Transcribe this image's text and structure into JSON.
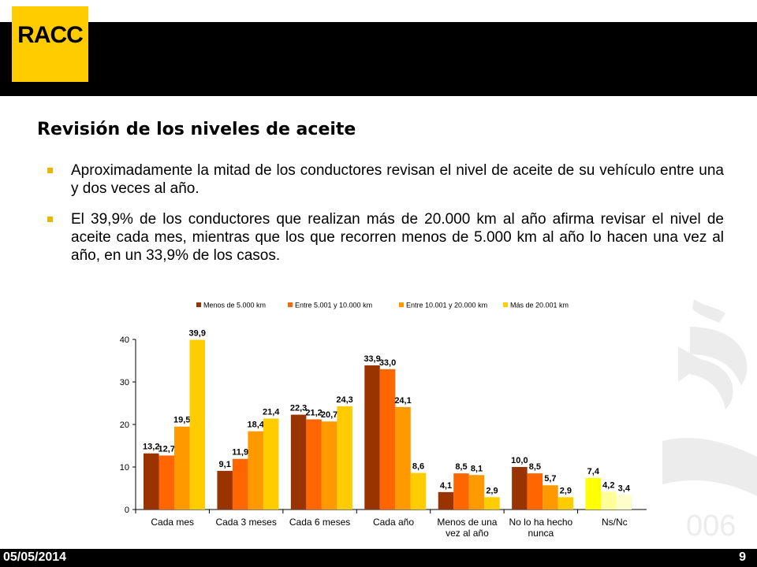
{
  "header": {
    "logo_text": "RACC"
  },
  "slide": {
    "title": "Revisión de los niveles de aceite",
    "bullets": [
      "Aproximadamente la mitad de los conductores revisan el nivel de aceite de su vehículo entre una y dos veces al año.",
      "El 39,9% de los conductores que realizan más de 20.000 km al año afirma revisar el nivel de aceite cada mes, mientras que los que recorren menos de 5.000 km al año lo hacen una vez al año, en un 33,9% de los casos."
    ]
  },
  "footer": {
    "date": "05/05/2014",
    "page_number": "9"
  },
  "chart_data": {
    "type": "bar",
    "categories": [
      [
        "Cada mes"
      ],
      [
        "Cada 3 meses"
      ],
      [
        "Cada 6 meses"
      ],
      [
        "Cada año"
      ],
      [
        "Menos de una",
        "vez al año"
      ],
      [
        "No lo ha hecho",
        "nunca"
      ],
      [
        "Ns/Nc"
      ]
    ],
    "series": [
      {
        "name": "Menos de 5.000 km",
        "color": "#993300",
        "values": [
          13.2,
          9.1,
          22.3,
          33.9,
          4.1,
          10.0,
          7.4
        ],
        "labels": [
          "13,2",
          "9,1",
          "22,3",
          "33,9",
          "4,1",
          "10,0",
          "7,4"
        ]
      },
      {
        "name": "Entre 5.001 y 10.000 km",
        "color": "#FF6600",
        "values": [
          12.7,
          11.9,
          21.2,
          33.0,
          8.5,
          8.5,
          4.2
        ],
        "labels": [
          "12,7",
          "11,9",
          "21,2",
          "33,0",
          "8,5",
          "8,5",
          "4,2"
        ]
      },
      {
        "name": "Entre 10.001 y 20.000 km",
        "color": "#FF9900",
        "values": [
          19.5,
          18.4,
          20.7,
          24.1,
          8.1,
          5.7,
          3.4
        ],
        "labels": [
          "19,5",
          "18,4",
          "20,7",
          "24,1",
          "8,1",
          "5,7",
          "3,4"
        ]
      },
      {
        "name": "Más de 20.001 km",
        "color": "#FFCC00",
        "values": [
          39.9,
          21.4,
          24.3,
          8.6,
          2.9,
          2.9,
          null
        ],
        "labels": [
          "39,9",
          "21,4",
          "24,3",
          "8,6",
          "2,9",
          "2,9",
          ""
        ]
      }
    ],
    "nsnc_colors": [
      "#FFFF00",
      "#FFFF99",
      "#FFFFCC"
    ],
    "ylim": [
      0,
      40
    ],
    "yticks": [
      0,
      10,
      20,
      30,
      40
    ],
    "legend_position": "top"
  }
}
